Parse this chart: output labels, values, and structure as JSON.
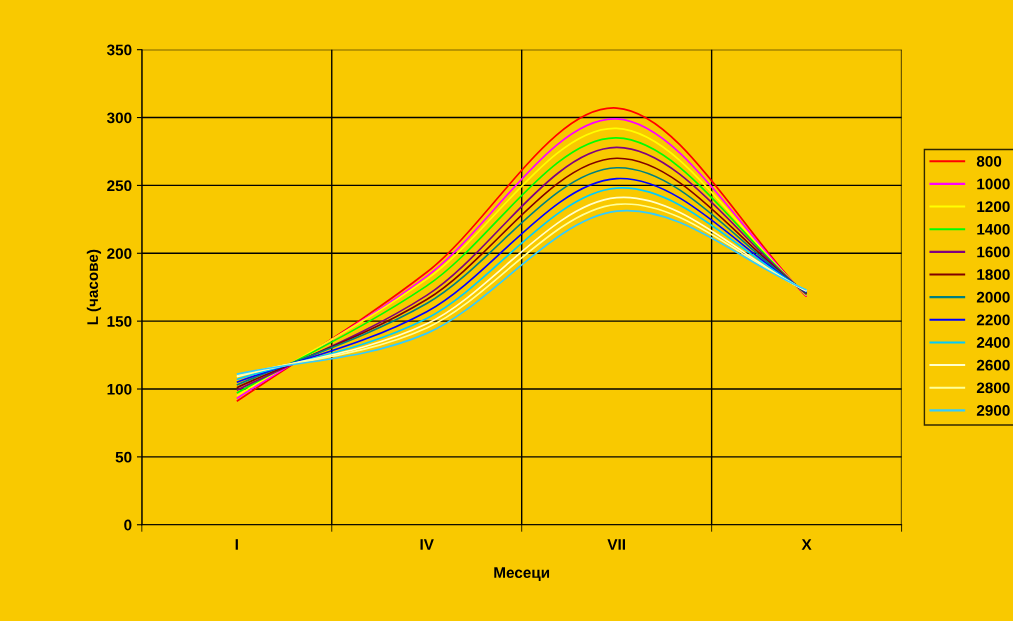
{
  "chart_data": {
    "type": "line",
    "xlabel": "Месеци",
    "ylabel": "L (часове)",
    "categories": [
      "I",
      "IV",
      "VII",
      "X"
    ],
    "ylim": [
      0,
      350
    ],
    "yticks": [
      0,
      50,
      100,
      150,
      200,
      250,
      300,
      350
    ],
    "grid": true,
    "legend": "right",
    "marker": "none",
    "line_style": "solid",
    "series": [
      {
        "name": "800",
        "color": "#ff0000",
        "values": [
          91,
          186,
          307,
          168
        ]
      },
      {
        "name": "1000",
        "color": "#ff00ff",
        "values": [
          93,
          183,
          299,
          168.5
        ]
      },
      {
        "name": "1200",
        "color": "#ffff00",
        "values": [
          95,
          181,
          292,
          169
        ]
      },
      {
        "name": "1400",
        "color": "#00ff00",
        "values": [
          97,
          176,
          285,
          169.5
        ]
      },
      {
        "name": "1600",
        "color": "#800080",
        "values": [
          99,
          169,
          278,
          170
        ]
      },
      {
        "name": "1800",
        "color": "#800000",
        "values": [
          101,
          166,
          270,
          170.5
        ]
      },
      {
        "name": "2000",
        "color": "#008080",
        "values": [
          103,
          163,
          263,
          171
        ]
      },
      {
        "name": "2200",
        "color": "#0000ff",
        "values": [
          105,
          157,
          255,
          171.5
        ]
      },
      {
        "name": "2400",
        "color": "#00ccff",
        "values": [
          107,
          152,
          248,
          172
        ]
      },
      {
        "name": "2600",
        "color": "#ffffcc",
        "values": [
          109,
          148,
          241,
          172
        ]
      },
      {
        "name": "2800",
        "color": "#ffff99",
        "values": [
          110,
          145,
          236,
          172.5
        ]
      },
      {
        "name": "2900",
        "color": "#33ccff",
        "values": [
          111,
          141,
          231,
          173
        ]
      }
    ]
  }
}
